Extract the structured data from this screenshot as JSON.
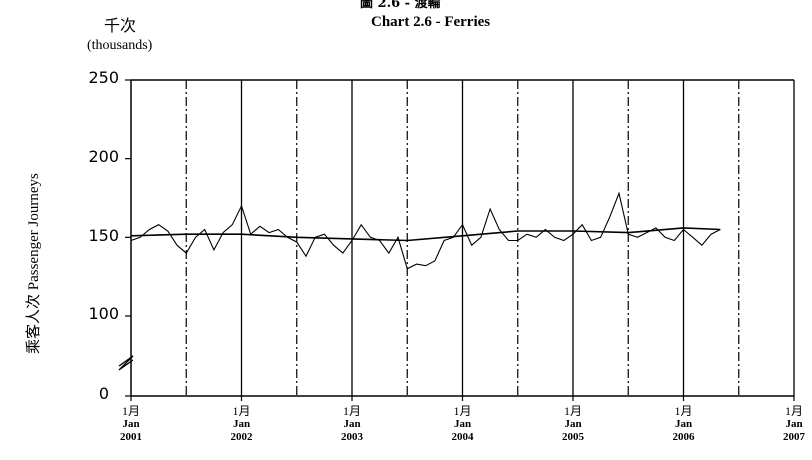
{
  "chart_data": {
    "type": "line",
    "title_zh": "圖 2.6 - 渡輪",
    "title": "Chart 2.6 -  Ferries",
    "unit_zh": "千次",
    "unit_en": "(thousands)",
    "ylabel": "乘客人次  Passenger Journeys",
    "yticks": [
      "0",
      "100",
      "150",
      "200",
      "250"
    ],
    "ylim": [
      0,
      250
    ],
    "y_axis_break": true,
    "xticks": [
      {
        "zh": "1月",
        "en": "Jan",
        "year": "2001"
      },
      {
        "zh": "1月",
        "en": "Jan",
        "year": "2002"
      },
      {
        "zh": "1月",
        "en": "Jan",
        "year": "2003"
      },
      {
        "zh": "1月",
        "en": "Jan",
        "year": "2004"
      },
      {
        "zh": "1月",
        "en": "Jan",
        "year": "2005"
      },
      {
        "zh": "1月",
        "en": "Jan",
        "year": "2006"
      },
      {
        "zh": "1月",
        "en": "Jan",
        "year": "2007"
      }
    ],
    "grid": {
      "year_lines": "solid",
      "mid_year_lines": "dash-dot"
    },
    "series": [
      {
        "style": "monthly",
        "x": [
          "2001-01",
          "2001-02",
          "2001-03",
          "2001-04",
          "2001-05",
          "2001-06",
          "2001-07",
          "2001-08",
          "2001-09",
          "2001-10",
          "2001-11",
          "2001-12",
          "2002-01",
          "2002-02",
          "2002-03",
          "2002-04",
          "2002-05",
          "2002-06",
          "2002-07",
          "2002-08",
          "2002-09",
          "2002-10",
          "2002-11",
          "2002-12",
          "2003-01",
          "2003-02",
          "2003-03",
          "2003-04",
          "2003-05",
          "2003-06",
          "2003-07",
          "2003-08",
          "2003-09",
          "2003-10",
          "2003-11",
          "2003-12",
          "2004-01",
          "2004-02",
          "2004-03",
          "2004-04",
          "2004-05",
          "2004-06",
          "2004-07",
          "2004-08",
          "2004-09",
          "2004-10",
          "2004-11",
          "2004-12",
          "2005-01",
          "2005-02",
          "2005-03",
          "2005-04",
          "2005-05",
          "2005-06",
          "2005-07",
          "2005-08",
          "2005-09",
          "2005-10",
          "2005-11",
          "2005-12",
          "2006-01",
          "2006-02",
          "2006-03",
          "2006-04",
          "2006-05"
        ],
        "values": [
          148,
          150,
          155,
          158,
          154,
          145,
          140,
          150,
          155,
          142,
          153,
          158,
          170,
          152,
          157,
          153,
          155,
          150,
          147,
          138,
          150,
          152,
          145,
          140,
          148,
          158,
          150,
          148,
          140,
          150,
          130,
          133,
          132,
          135,
          148,
          150,
          158,
          145,
          150,
          168,
          155,
          148,
          148,
          152,
          150,
          155,
          150,
          148,
          152,
          158,
          148,
          150,
          163,
          178,
          152,
          150,
          153,
          156,
          150,
          148,
          155,
          150,
          145,
          152,
          155
        ]
      },
      {
        "style": "trend",
        "x": [
          "2001-01",
          "2001-07",
          "2002-01",
          "2002-07",
          "2003-01",
          "2003-07",
          "2004-01",
          "2004-07",
          "2005-01",
          "2005-07",
          "2006-01",
          "2006-05"
        ],
        "values": [
          151,
          152,
          152,
          150,
          149,
          148,
          151,
          154,
          154,
          153,
          156,
          155
        ]
      }
    ]
  }
}
